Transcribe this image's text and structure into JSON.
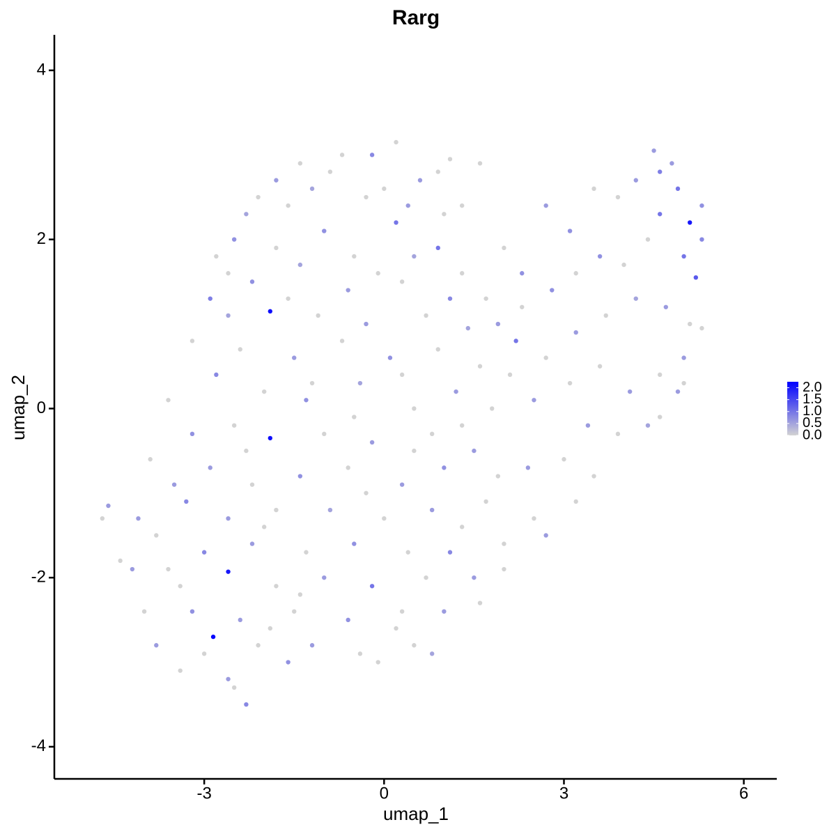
{
  "chart_data": {
    "type": "scatter",
    "title": "Rarg",
    "x_label": "umap_1",
    "y_label": "umap_2",
    "xlim": [
      -5.5,
      6.55
    ],
    "ylim": [
      -4.38,
      4.42
    ],
    "xticks": [
      -3,
      0,
      3,
      6
    ],
    "yticks": [
      -4,
      -2,
      0,
      2,
      4
    ],
    "low_color": "#d3d3d3",
    "high_color": "#0000ff",
    "colorbar": {
      "lim": [
        0,
        2.25
      ],
      "ticks": [
        {
          "value": 0,
          "label": "0.0"
        },
        {
          "value": 0.5,
          "label": "0.5"
        },
        {
          "value": 1,
          "label": "1.0"
        },
        {
          "value": 1.5,
          "label": "1.5"
        },
        {
          "value": 2,
          "label": "2.0"
        }
      ]
    },
    "x": [
      -1.4,
      -0.7,
      -0.2,
      0.2,
      0.6,
      0.9,
      1.1,
      1.6,
      -1.8,
      -2.1,
      -2.5,
      -2.8,
      -2.9,
      -3.2,
      -3.6,
      -3.2,
      -3.9,
      -3.5,
      -2.3,
      -1.2,
      -0.3,
      0.4,
      1.0,
      -1.0,
      0.2,
      -1.8,
      -1.4,
      -0.5,
      0.5,
      0.9,
      1.3,
      -2.2,
      -1.6,
      -0.6,
      0.3,
      1.1,
      -2.6,
      -1.9,
      -1.1,
      -0.3,
      0.7,
      1.4,
      -2.4,
      -1.5,
      -0.7,
      0.1,
      0.9,
      1.6,
      -2.8,
      -2.0,
      -1.3,
      -0.4,
      0.5,
      1.2,
      -2.5,
      -1.9,
      -1.0,
      -0.2,
      0.8,
      1.5,
      -2.9,
      -2.2,
      -1.4,
      -0.6,
      0.3,
      1.0,
      1.9,
      -3.3,
      -2.6,
      -1.8,
      -0.9,
      0.0,
      0.8,
      1.7,
      2.5,
      -3.8,
      -3.0,
      -2.2,
      -1.3,
      -0.5,
      0.4,
      1.1,
      2.0,
      -4.2,
      -3.4,
      -2.6,
      -1.8,
      -1.0,
      -0.2,
      0.7,
      1.5,
      -4.0,
      -3.2,
      -2.4,
      -1.5,
      -0.6,
      0.3,
      1.0,
      -3.8,
      -2.85,
      -2.1,
      -1.2,
      -0.4,
      0.5,
      -3.4,
      -2.6,
      -1.6,
      -2.3,
      -2.5,
      -0.1,
      0.8,
      -4.7,
      -4.6,
      -4.4,
      -4.1,
      2.0,
      2.3,
      2.7,
      3.1,
      3.5,
      3.9,
      4.2,
      4.5,
      4.6,
      4.8,
      4.9,
      5.1,
      5.3,
      5.3,
      5.0,
      5.2,
      4.6,
      4.4,
      4.0,
      3.6,
      3.2,
      2.8,
      2.3,
      1.9,
      2.2,
      2.7,
      3.2,
      3.7,
      4.2,
      4.7,
      5.1,
      5.3,
      5.0,
      4.6,
      4.1,
      3.6,
      3.1,
      2.5,
      2.1,
      1.8,
      3.4,
      3.9,
      4.4,
      4.9,
      3.0,
      2.4,
      3.5,
      3.2,
      2.7,
      2.0,
      1.6,
      4.6,
      5.0,
      -1.6,
      -0.9,
      0.0,
      1.3,
      -2.6,
      -0.1,
      1.7,
      -1.2,
      0.3,
      1.3,
      -2.3,
      -0.5,
      0.5,
      -3.6,
      -2.0,
      -0.3,
      1.3,
      -1.4,
      0.2,
      -3.0,
      -1.9
    ],
    "y": [
      2.9,
      3.0,
      3.0,
      3.15,
      2.7,
      2.8,
      2.95,
      2.9,
      2.7,
      2.5,
      2.0,
      1.8,
      1.3,
      0.8,
      0.1,
      -0.3,
      -0.6,
      -0.9,
      2.3,
      2.6,
      2.5,
      2.4,
      2.3,
      2.1,
      2.2,
      1.9,
      1.7,
      1.8,
      1.8,
      1.9,
      1.6,
      1.5,
      1.3,
      1.4,
      1.5,
      1.3,
      1.1,
      1.15,
      1.1,
      1.0,
      1.1,
      0.95,
      0.7,
      0.6,
      0.8,
      0.6,
      0.7,
      0.5,
      0.4,
      0.2,
      0.1,
      0.3,
      0.0,
      0.2,
      -0.2,
      -0.35,
      -0.3,
      -0.4,
      -0.3,
      -0.5,
      -0.7,
      -0.9,
      -0.8,
      -0.7,
      -0.9,
      -0.7,
      -0.8,
      -1.1,
      -1.3,
      -1.2,
      -1.2,
      -1.3,
      -1.2,
      -1.1,
      -1.3,
      -1.5,
      -1.7,
      -1.6,
      -1.7,
      -1.6,
      -1.7,
      -1.7,
      -1.6,
      -1.9,
      -2.1,
      -1.93,
      -2.1,
      -2.0,
      -2.1,
      -2.0,
      -2.0,
      -2.4,
      -2.4,
      -2.5,
      -2.4,
      -2.5,
      -2.4,
      -2.4,
      -2.8,
      -2.7,
      -2.8,
      -2.8,
      -2.9,
      -2.8,
      -3.1,
      -3.2,
      -3.0,
      -3.5,
      -3.3,
      -3.0,
      -2.9,
      -1.3,
      -1.15,
      -1.8,
      -1.3,
      1.9,
      1.6,
      2.4,
      2.1,
      2.6,
      2.5,
      2.7,
      3.05,
      2.8,
      2.9,
      2.6,
      2.2,
      2.4,
      2.0,
      1.8,
      1.55,
      2.3,
      2.0,
      1.7,
      1.8,
      1.6,
      1.4,
      1.2,
      1.0,
      0.8,
      0.6,
      0.9,
      1.1,
      1.3,
      1.2,
      1.0,
      0.95,
      0.6,
      0.4,
      0.2,
      0.5,
      0.3,
      0.1,
      0.4,
      0.0,
      -0.2,
      -0.3,
      -0.2,
      0.2,
      -0.6,
      -0.7,
      -0.8,
      -1.1,
      -1.5,
      -1.9,
      -2.3,
      -0.1,
      0.3,
      2.4,
      2.8,
      2.6,
      2.4,
      1.6,
      1.6,
      1.3,
      0.3,
      0.4,
      -0.2,
      -0.5,
      -0.1,
      -0.5,
      -1.9,
      -1.4,
      -1.0,
      -1.4,
      -2.2,
      -2.6,
      -2.9,
      -2.6
    ],
    "values": [
      0,
      0,
      0.8,
      0,
      0.6,
      0,
      0,
      0,
      0.6,
      0,
      0.7,
      0,
      0.9,
      0,
      0,
      0.7,
      0,
      0.6,
      0.5,
      0.5,
      0,
      0.6,
      0,
      0.7,
      1.0,
      0,
      0.5,
      0,
      0.5,
      1.0,
      0,
      0.7,
      0,
      0.6,
      0,
      0.8,
      0.5,
      2.1,
      0,
      0.6,
      0,
      0.5,
      0,
      0.6,
      0,
      0.7,
      0,
      0,
      0.8,
      0,
      0.7,
      0.5,
      0,
      0.6,
      0,
      2.1,
      0,
      0.6,
      0,
      0.6,
      0.6,
      0,
      0.7,
      0,
      0.6,
      0.7,
      0,
      0.8,
      0.6,
      0,
      0.5,
      0,
      0.6,
      0,
      0,
      0,
      0.8,
      0.6,
      0,
      0.7,
      0,
      0.8,
      0,
      0.6,
      0,
      2.0,
      0,
      0.6,
      1.0,
      0,
      0.6,
      0,
      0.7,
      0.6,
      0,
      0.7,
      0,
      0.6,
      0.6,
      2.2,
      0,
      0.6,
      0,
      0,
      0,
      0.6,
      0.7,
      0.8,
      0,
      0,
      0.5,
      0,
      0.6,
      0,
      0.6,
      0,
      0.7,
      0.6,
      0.7,
      0,
      0,
      0.6,
      0.6,
      0.9,
      0.6,
      1.0,
      2.0,
      0.7,
      0.8,
      1.0,
      1.3,
      1.0,
      0,
      0,
      0.7,
      0,
      0.7,
      0,
      0.6,
      1.0,
      0,
      0.6,
      0,
      0.5,
      0.6,
      0,
      0,
      0.6,
      0,
      0.6,
      0,
      0,
      0.6,
      0,
      0,
      0.6,
      0,
      0.5,
      0.6,
      0,
      0.6,
      0,
      0,
      0.6,
      0,
      0,
      0,
      0,
      0,
      0,
      0,
      0,
      0,
      0,
      0,
      0,
      0,
      0,
      0,
      0,
      0,
      0,
      0,
      0,
      0,
      0,
      0,
      0,
      0
    ]
  }
}
